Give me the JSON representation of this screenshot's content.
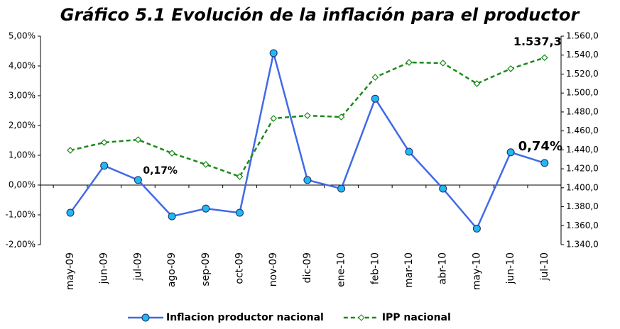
{
  "chart_data": {
    "type": "line",
    "title": "Gráfico 5.1   Evolución de la inflación para el productor",
    "categories": [
      "may-09",
      "jun-09",
      "jul-09",
      "ago-09",
      "sep-09",
      "oct-09",
      "nov-09",
      "dic-09",
      "ene-10",
      "feb-10",
      "mar-10",
      "abr-10",
      "may-10",
      "jun-10",
      "jul-10"
    ],
    "series": [
      {
        "name": "Inflacion productor nacional",
        "color": "#4169e8",
        "marker_color": "#22b8f0",
        "values": [
          -0.93,
          0.65,
          0.17,
          -1.05,
          -0.79,
          -0.93,
          4.43,
          0.17,
          -0.12,
          2.9,
          1.12,
          -0.12,
          -1.46,
          1.1,
          0.74
        ],
        "value_labels": [
          null,
          null,
          "0,17%",
          null,
          null,
          null,
          null,
          null,
          null,
          null,
          null,
          null,
          null,
          null,
          "0,74%"
        ]
      },
      {
        "name": "IPP nacional",
        "color": "#1a8a1a",
        "axis": "y2",
        "dashed": true,
        "values": [
          1439.5,
          1447.8,
          1450.7,
          1436.5,
          1424.6,
          1411.8,
          1473.2,
          1476.2,
          1474.7,
          1516.6,
          1532.3,
          1531.6,
          1509.9,
          1525.6,
          1537.3
        ],
        "value_labels": [
          null,
          null,
          null,
          null,
          null,
          null,
          null,
          null,
          null,
          null,
          null,
          null,
          null,
          null,
          "1.537,3"
        ]
      }
    ],
    "ylim": [
      -2,
      5
    ],
    "yticks": [
      {
        "value": -2,
        "label": "-2,00%"
      },
      {
        "value": -1,
        "label": "-1,00%"
      },
      {
        "value": 0,
        "label": "0,00%"
      },
      {
        "value": 1,
        "label": "1,00%"
      },
      {
        "value": 2,
        "label": "2,00%"
      },
      {
        "value": 3,
        "label": "3,00%"
      },
      {
        "value": 4,
        "label": "4,00%"
      },
      {
        "value": 5,
        "label": "5,00%"
      }
    ],
    "y2lim": [
      1340,
      1560
    ],
    "y2ticks": [
      {
        "value": 1340,
        "label": "1.340,0"
      },
      {
        "value": 1360,
        "label": "1.360,0"
      },
      {
        "value": 1380,
        "label": "1.380,0"
      },
      {
        "value": 1400,
        "label": "1.400,0"
      },
      {
        "value": 1420,
        "label": "1.420,0"
      },
      {
        "value": 1440,
        "label": "1.440,0"
      },
      {
        "value": 1460,
        "label": "1.460,0"
      },
      {
        "value": 1480,
        "label": "1.480,0"
      },
      {
        "value": 1500,
        "label": "1.500,0"
      },
      {
        "value": 1520,
        "label": "1.520,0"
      },
      {
        "value": 1540,
        "label": "1.540,0"
      },
      {
        "value": 1560,
        "label": "1.560,0"
      }
    ],
    "grid": false,
    "legend": "bottom"
  }
}
